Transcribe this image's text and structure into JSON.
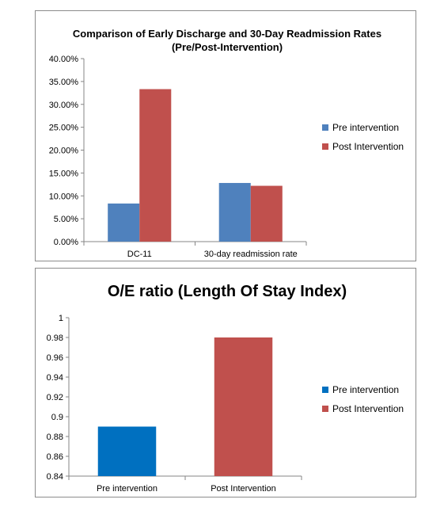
{
  "chart_data": [
    {
      "type": "bar",
      "title": "Comparison of Early Discharge and 30-Day Readmission Rates",
      "subtitle": "(Pre/Post-Intervention)",
      "categories": [
        "DC-11",
        "30-day readmission rate"
      ],
      "series": [
        {
          "name": "Pre intervention",
          "values": [
            8.33,
            12.82
          ],
          "color": "#4F81BD"
        },
        {
          "name": "Post Intervention",
          "values": [
            33.33,
            12.2
          ],
          "color": "#C0504D"
        }
      ],
      "ylim": [
        0,
        40
      ],
      "ytick_step": 5,
      "ytick_format": "percent2",
      "xlabel": "",
      "ylabel": "",
      "grid": false,
      "legend": "right"
    },
    {
      "type": "bar",
      "title": "O/E ratio (Length Of Stay Index)",
      "categories": [
        "Pre intervention",
        "Post Intervention"
      ],
      "series": [
        {
          "name": "Pre intervention",
          "values": [
            0.89,
            null
          ],
          "color": "#0070C0"
        },
        {
          "name": "Post Intervention",
          "values": [
            null,
            0.98
          ],
          "color": "#C0504D"
        }
      ],
      "ylim": [
        0.84,
        1.0
      ],
      "ytick_step": 0.02,
      "ytick_format": "trim",
      "xlabel": "",
      "ylabel": "",
      "grid": false,
      "legend": "right"
    }
  ]
}
